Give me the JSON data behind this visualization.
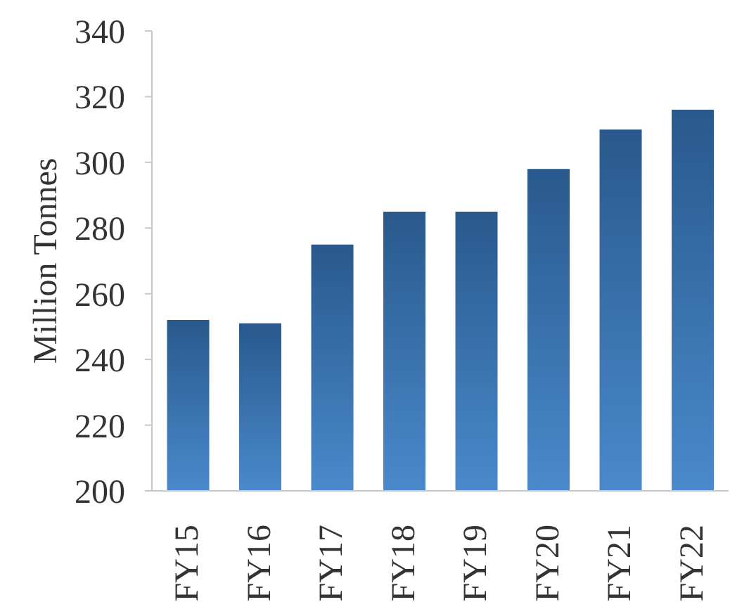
{
  "chart_data": {
    "type": "bar",
    "ylabel": "Million Tonnes",
    "categories": [
      "FY15",
      "FY16",
      "FY17",
      "FY18",
      "FY19",
      "FY20",
      "FY21",
      "FY22"
    ],
    "values": [
      252,
      251,
      275,
      285,
      285,
      298,
      310,
      316
    ],
    "color": "#3a7fc8",
    "ylim": [
      200,
      340
    ],
    "yticks": [
      200,
      220,
      240,
      260,
      280,
      300,
      320,
      340
    ]
  }
}
